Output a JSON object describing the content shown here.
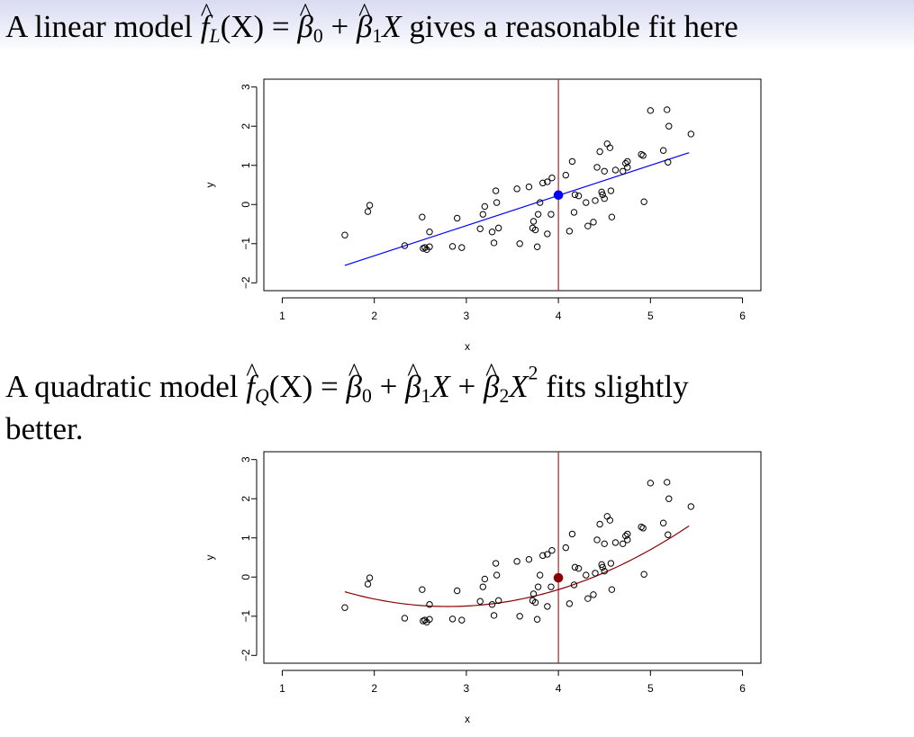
{
  "slide": {
    "text1_pre": "A linear model ",
    "text1_post": " gives a reasonable fit here",
    "text2_pre": "A quadratic model ",
    "text2_post": " fits slightly",
    "text2_cont": "better.",
    "formula_linear": {
      "f": "f",
      "sub": "L",
      "arg": "(X)",
      "eq": "=",
      "b0": "β",
      "b0sub": "0",
      "plus": "+",
      "b1": "β",
      "b1sub": "1",
      "x": "X"
    },
    "formula_quadratic": {
      "f": "f",
      "sub": "Q",
      "arg": "(X)",
      "eq": "=",
      "b0": "β",
      "b0sub": "0",
      "plus1": "+",
      "b1": "β",
      "b1sub": "1",
      "x1": "X",
      "plus2": "+",
      "b2": "β",
      "b2sub": "2",
      "x2": "X",
      "x2sup": "2"
    }
  },
  "chart_data": [
    {
      "type": "scatter",
      "xlabel": "x",
      "ylabel": "y",
      "xlim": [
        0.8,
        6.2
      ],
      "ylim": [
        -2.2,
        3.2
      ],
      "xticks": [
        "1",
        "2",
        "3",
        "4",
        "5",
        "6"
      ],
      "yticks": [
        "-2",
        "-1",
        "0",
        "1",
        "2",
        "3"
      ],
      "vline_x": 4,
      "highlight": {
        "x": 4.0,
        "y": 0.24,
        "color": "#0000ff"
      },
      "fit": {
        "kind": "linear",
        "intercept": -2.85,
        "slope": 0.77,
        "x_range": [
          1.68,
          5.42
        ],
        "color": "#0000ff"
      },
      "vline_color": "#b22222",
      "points": [
        [
          1.68,
          -0.78
        ],
        [
          1.93,
          -0.18
        ],
        [
          1.95,
          -0.02
        ],
        [
          2.33,
          -1.05
        ],
        [
          2.52,
          -0.32
        ],
        [
          2.53,
          -1.12
        ],
        [
          2.55,
          -1.1
        ],
        [
          2.57,
          -1.15
        ],
        [
          2.6,
          -0.7
        ],
        [
          2.6,
          -1.08
        ],
        [
          2.85,
          -1.07
        ],
        [
          2.9,
          -0.35
        ],
        [
          2.95,
          -1.1
        ],
        [
          3.15,
          -0.62
        ],
        [
          3.18,
          -0.25
        ],
        [
          3.2,
          -0.05
        ],
        [
          3.28,
          -0.7
        ],
        [
          3.3,
          -0.98
        ],
        [
          3.32,
          0.35
        ],
        [
          3.33,
          0.05
        ],
        [
          3.35,
          -0.6
        ],
        [
          3.55,
          0.4
        ],
        [
          3.58,
          -1.0
        ],
        [
          3.68,
          0.45
        ],
        [
          3.72,
          -0.6
        ],
        [
          3.73,
          -0.43
        ],
        [
          3.75,
          -0.65
        ],
        [
          3.77,
          -1.08
        ],
        [
          3.78,
          -0.25
        ],
        [
          3.8,
          0.05
        ],
        [
          3.83,
          0.55
        ],
        [
          3.88,
          0.58
        ],
        [
          3.88,
          -0.75
        ],
        [
          3.92,
          -0.25
        ],
        [
          3.93,
          0.68
        ],
        [
          4.08,
          0.75
        ],
        [
          4.12,
          -0.68
        ],
        [
          4.15,
          1.1
        ],
        [
          4.17,
          -0.2
        ],
        [
          4.18,
          0.25
        ],
        [
          4.22,
          0.22
        ],
        [
          4.3,
          0.05
        ],
        [
          4.32,
          -0.55
        ],
        [
          4.38,
          -0.45
        ],
        [
          4.4,
          0.1
        ],
        [
          4.42,
          0.95
        ],
        [
          4.45,
          1.35
        ],
        [
          4.47,
          0.32
        ],
        [
          4.48,
          0.25
        ],
        [
          4.5,
          0.85
        ],
        [
          4.5,
          0.15
        ],
        [
          4.53,
          1.55
        ],
        [
          4.56,
          1.45
        ],
        [
          4.57,
          0.35
        ],
        [
          4.58,
          -0.32
        ],
        [
          4.62,
          0.88
        ],
        [
          4.7,
          0.85
        ],
        [
          4.73,
          1.05
        ],
        [
          4.75,
          1.1
        ],
        [
          4.75,
          0.95
        ],
        [
          4.9,
          1.28
        ],
        [
          4.92,
          1.25
        ],
        [
          4.93,
          0.07
        ],
        [
          5.0,
          2.4
        ],
        [
          5.14,
          1.38
        ],
        [
          5.18,
          2.42
        ],
        [
          5.19,
          1.08
        ],
        [
          5.2,
          2.0
        ],
        [
          5.44,
          1.8
        ]
      ]
    },
    {
      "type": "scatter",
      "xlabel": "x",
      "ylabel": "y",
      "xlim": [
        0.8,
        6.2
      ],
      "ylim": [
        -2.2,
        3.2
      ],
      "xticks": [
        "1",
        "2",
        "3",
        "4",
        "5",
        "6"
      ],
      "yticks": [
        "-2",
        "-1",
        "0",
        "1",
        "2",
        "3"
      ],
      "vline_x": 4,
      "highlight": {
        "x": 4.0,
        "y": -0.02,
        "color": "#8b0000"
      },
      "fit": {
        "kind": "quadratic",
        "a": 0.3,
        "b": -1.68,
        "c": 1.6,
        "x_range": [
          1.68,
          5.42
        ],
        "color": "#8b0000"
      },
      "vline_color": "#b22222",
      "points": [
        [
          1.68,
          -0.78
        ],
        [
          1.93,
          -0.18
        ],
        [
          1.95,
          -0.02
        ],
        [
          2.33,
          -1.05
        ],
        [
          2.52,
          -0.32
        ],
        [
          2.53,
          -1.12
        ],
        [
          2.55,
          -1.1
        ],
        [
          2.57,
          -1.15
        ],
        [
          2.6,
          -0.7
        ],
        [
          2.6,
          -1.08
        ],
        [
          2.85,
          -1.07
        ],
        [
          2.9,
          -0.35
        ],
        [
          2.95,
          -1.1
        ],
        [
          3.15,
          -0.62
        ],
        [
          3.18,
          -0.25
        ],
        [
          3.2,
          -0.05
        ],
        [
          3.28,
          -0.7
        ],
        [
          3.3,
          -0.98
        ],
        [
          3.32,
          0.35
        ],
        [
          3.33,
          0.05
        ],
        [
          3.35,
          -0.6
        ],
        [
          3.55,
          0.4
        ],
        [
          3.58,
          -1.0
        ],
        [
          3.68,
          0.45
        ],
        [
          3.72,
          -0.6
        ],
        [
          3.73,
          -0.43
        ],
        [
          3.75,
          -0.65
        ],
        [
          3.77,
          -1.08
        ],
        [
          3.78,
          -0.25
        ],
        [
          3.8,
          0.05
        ],
        [
          3.83,
          0.55
        ],
        [
          3.88,
          0.58
        ],
        [
          3.88,
          -0.75
        ],
        [
          3.92,
          -0.25
        ],
        [
          3.93,
          0.68
        ],
        [
          4.08,
          0.75
        ],
        [
          4.12,
          -0.68
        ],
        [
          4.15,
          1.1
        ],
        [
          4.17,
          -0.2
        ],
        [
          4.18,
          0.25
        ],
        [
          4.22,
          0.22
        ],
        [
          4.3,
          0.05
        ],
        [
          4.32,
          -0.55
        ],
        [
          4.38,
          -0.45
        ],
        [
          4.4,
          0.1
        ],
        [
          4.42,
          0.95
        ],
        [
          4.45,
          1.35
        ],
        [
          4.47,
          0.32
        ],
        [
          4.48,
          0.25
        ],
        [
          4.5,
          0.85
        ],
        [
          4.5,
          0.15
        ],
        [
          4.53,
          1.55
        ],
        [
          4.56,
          1.45
        ],
        [
          4.57,
          0.35
        ],
        [
          4.58,
          -0.32
        ],
        [
          4.62,
          0.88
        ],
        [
          4.7,
          0.85
        ],
        [
          4.73,
          1.05
        ],
        [
          4.75,
          1.1
        ],
        [
          4.75,
          0.95
        ],
        [
          4.9,
          1.28
        ],
        [
          4.92,
          1.25
        ],
        [
          4.93,
          0.07
        ],
        [
          5.0,
          2.4
        ],
        [
          5.14,
          1.38
        ],
        [
          5.18,
          2.42
        ],
        [
          5.19,
          1.08
        ],
        [
          5.2,
          2.0
        ],
        [
          5.44,
          1.8
        ]
      ]
    }
  ]
}
